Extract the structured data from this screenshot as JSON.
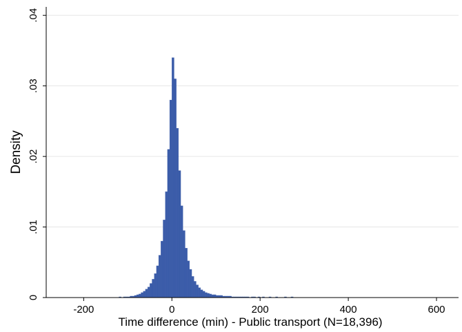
{
  "chart_data": {
    "type": "histogram",
    "xlabel": "Time difference (min) - Public transport (N=18,396)",
    "ylabel": "Density",
    "color": "#3b5ca9",
    "bins": [
      -120,
      -115,
      -110,
      -105,
      -100,
      -95,
      -90,
      -85,
      -80,
      -75,
      -70,
      -65,
      -60,
      -55,
      -50,
      -45,
      -40,
      -35,
      -30,
      -25,
      -20,
      -15,
      -10,
      -5,
      0,
      5,
      10,
      15,
      20,
      25,
      30,
      35,
      40,
      45,
      50,
      55,
      60,
      65,
      70,
      75,
      80,
      85,
      90,
      95,
      100,
      105,
      110,
      115,
      120,
      125,
      130,
      135,
      140,
      145,
      150,
      155,
      160,
      165,
      170,
      175,
      180,
      185,
      190,
      195,
      200,
      205,
      210,
      215,
      220,
      225,
      230,
      235,
      240,
      245,
      250,
      255,
      260,
      265,
      270,
      275,
      280
    ],
    "values": [
      0.0001,
      0,
      0.0001,
      0.0001,
      0.0001,
      0.0002,
      0.0002,
      0.0003,
      0.0004,
      0.0005,
      0.0007,
      0.0009,
      0.0012,
      0.0015,
      0.002,
      0.0026,
      0.0034,
      0.0045,
      0.006,
      0.008,
      0.011,
      0.015,
      0.021,
      0.028,
      0.034,
      0.031,
      0.024,
      0.018,
      0.013,
      0.0095,
      0.007,
      0.0052,
      0.004,
      0.003,
      0.0023,
      0.0018,
      0.0014,
      0.0011,
      0.0009,
      0.0007,
      0.0006,
      0.0005,
      0.0004,
      0.0004,
      0.0003,
      0.0003,
      0.0003,
      0.0002,
      0.0002,
      0.0002,
      0.0002,
      0.0001,
      0.0001,
      0.0001,
      0.0001,
      0.0001,
      0.0001,
      0.0001,
      0.0001,
      0,
      0.0001,
      0.0001,
      0,
      0.0001,
      0,
      0.0001,
      0,
      0,
      0.0001,
      0,
      0,
      0.0001,
      0,
      0,
      0,
      0.0001,
      0,
      0,
      0.0001,
      0
    ],
    "xlim": [
      -285,
      650
    ],
    "xticks": [
      -200,
      0,
      200,
      400,
      600
    ],
    "ylim": [
      0,
      0.041
    ],
    "yticks": [
      0,
      {
        "value": 0.01,
        "label": ".01"
      },
      {
        "value": 0.02,
        "label": ".02"
      },
      {
        "value": 0.03,
        "label": ".03"
      },
      {
        "value": 0.04,
        "label": ".04"
      }
    ],
    "grid": true
  }
}
